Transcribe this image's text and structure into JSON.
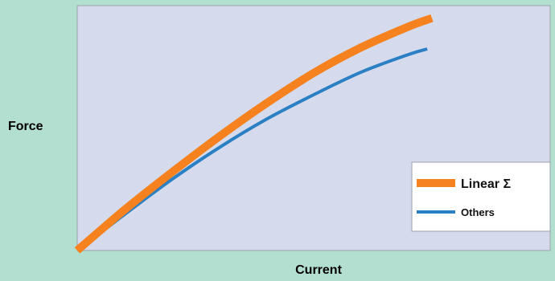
{
  "colors": {
    "background": "#b2dfcf",
    "plot_background": "#d5dbec",
    "plot_border": "#9aa0aa",
    "legend_background": "#ffffff",
    "linear_series": "#f5821f",
    "others_series": "#2b7fc3"
  },
  "chart_data": {
    "type": "line",
    "title": "",
    "xlabel": "Current",
    "ylabel": "Force",
    "xlim": [
      0,
      1
    ],
    "ylim": [
      0,
      1
    ],
    "grid": false,
    "legend_position": "bottom-right",
    "series": [
      {
        "name": "Linear Σ",
        "color": "#f5821f",
        "emphasis": "thick",
        "x": [
          0,
          0.1,
          0.2,
          0.3,
          0.4,
          0.5,
          0.6,
          0.7,
          0.75
        ],
        "y": [
          0,
          0.166,
          0.319,
          0.465,
          0.601,
          0.725,
          0.829,
          0.914,
          0.949
        ]
      },
      {
        "name": "Others",
        "color": "#2b7fc3",
        "emphasis": "normal",
        "x": [
          0,
          0.1,
          0.2,
          0.3,
          0.4,
          0.5,
          0.6,
          0.7,
          0.74
        ],
        "y": [
          0,
          0.147,
          0.29,
          0.42,
          0.536,
          0.636,
          0.728,
          0.8,
          0.823
        ]
      }
    ]
  }
}
